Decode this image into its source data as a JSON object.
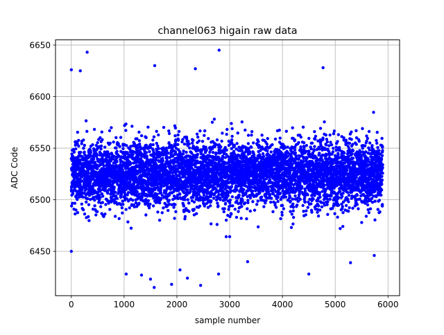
{
  "chart_data": {
    "type": "scatter",
    "title": "channel063 higain raw data",
    "xlabel": "sample number",
    "ylabel": "ADC Code",
    "xlim": [
      -300,
      6220
    ],
    "ylim": [
      6407,
      6655
    ],
    "x_ticks": [
      0,
      1000,
      2000,
      3000,
      4000,
      5000,
      6000
    ],
    "y_ticks": [
      6450,
      6500,
      6550,
      6600,
      6650
    ],
    "grid": true,
    "marker_color": "#0000ff",
    "n_points": 5900,
    "x_range": [
      0,
      5900
    ],
    "y_center": 6525,
    "y_spread": 16,
    "outliers": [
      {
        "x": 300,
        "y": 6643
      },
      {
        "x": 2800,
        "y": 6645
      },
      {
        "x": 4770,
        "y": 6628
      },
      {
        "x": 1580,
        "y": 6630
      },
      {
        "x": 0,
        "y": 6626
      },
      {
        "x": 170,
        "y": 6625
      },
      {
        "x": 2350,
        "y": 6627
      },
      {
        "x": 0,
        "y": 6450
      },
      {
        "x": 1040,
        "y": 6428
      },
      {
        "x": 1330,
        "y": 6427
      },
      {
        "x": 1500,
        "y": 6423
      },
      {
        "x": 1570,
        "y": 6415
      },
      {
        "x": 1900,
        "y": 6418
      },
      {
        "x": 2060,
        "y": 6432
      },
      {
        "x": 2200,
        "y": 6424
      },
      {
        "x": 2450,
        "y": 6417
      },
      {
        "x": 2790,
        "y": 6428
      },
      {
        "x": 3340,
        "y": 6440
      },
      {
        "x": 4500,
        "y": 6428
      },
      {
        "x": 5290,
        "y": 6439
      },
      {
        "x": 5740,
        "y": 6446
      }
    ]
  }
}
